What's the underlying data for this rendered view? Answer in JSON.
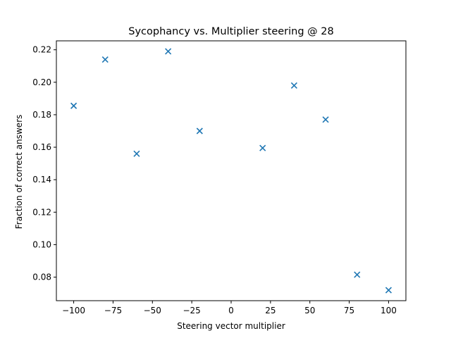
{
  "chart_data": {
    "type": "scatter",
    "title": "Sycophancy vs. Multiplier steering @ 28",
    "xlabel": "Steering vector multiplier",
    "ylabel": "Fraction of correct answers",
    "xlim": [
      -111,
      111
    ],
    "ylim": [
      0.0655,
      0.2255
    ],
    "xticks": [
      -100,
      -75,
      -50,
      -25,
      0,
      25,
      50,
      75,
      100
    ],
    "xtick_labels": [
      "−100",
      "−75",
      "−50",
      "−25",
      "0",
      "25",
      "50",
      "75",
      "100"
    ],
    "yticks": [
      0.08,
      0.1,
      0.12,
      0.14,
      0.16,
      0.18,
      0.2,
      0.22
    ],
    "ytick_labels": [
      "0.08",
      "0.10",
      "0.12",
      "0.14",
      "0.16",
      "0.18",
      "0.20",
      "0.22"
    ],
    "grid": false,
    "marker": "x",
    "color": "#1f77b4",
    "points": [
      {
        "x": -100,
        "y": 0.1855
      },
      {
        "x": -80,
        "y": 0.214
      },
      {
        "x": -60,
        "y": 0.156
      },
      {
        "x": -40,
        "y": 0.219
      },
      {
        "x": -20,
        "y": 0.17
      },
      {
        "x": 20,
        "y": 0.1595
      },
      {
        "x": 40,
        "y": 0.198
      },
      {
        "x": 60,
        "y": 0.177
      },
      {
        "x": 80,
        "y": 0.0815
      },
      {
        "x": 100,
        "y": 0.072
      }
    ]
  }
}
